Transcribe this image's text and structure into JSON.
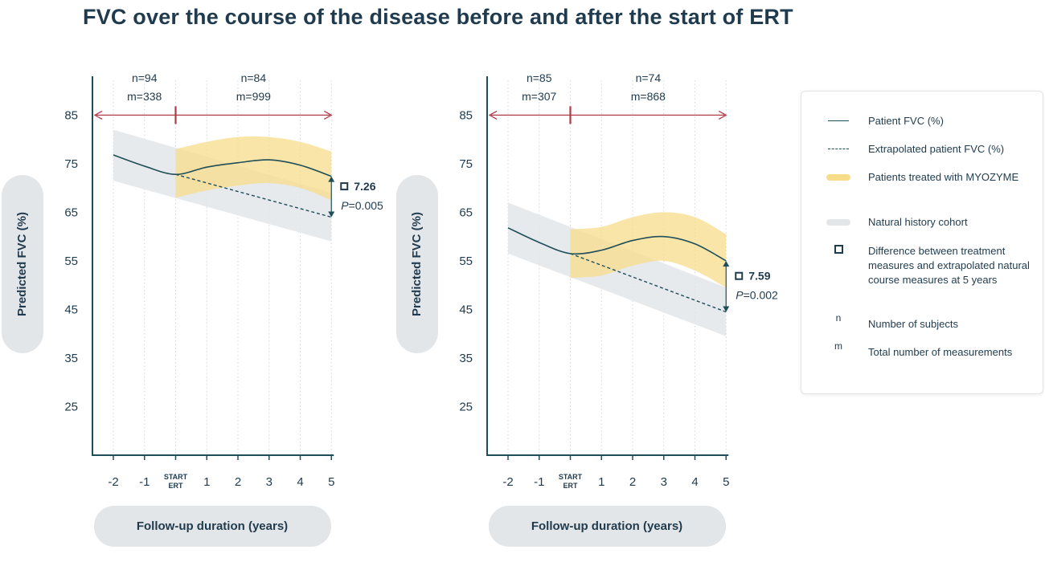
{
  "title": "FVC over the course of the disease before and after the start of ERT",
  "colors": {
    "patient_line": "#1f4e5a",
    "treated_band": "#f7dc8a",
    "natural_band": "#e3e6e9",
    "arrow": "#b03a48",
    "text": "#1f3b4d"
  },
  "legend": {
    "items": [
      {
        "symbol": "solid-line",
        "label": "Patient FVC (%)"
      },
      {
        "symbol": "dashed-line",
        "label": "Extrapolated patient FVC (%)"
      },
      {
        "symbol": "yellow-band",
        "label": "Patients treated with MYOZYME"
      },
      {
        "symbol": "gray-band",
        "label": "Natural history cohort"
      },
      {
        "symbol": "square-icon",
        "label": "Difference between treatment measures and extrapolated natural course measures at 5 years"
      },
      {
        "symbol": "n",
        "label": "Number of subjects"
      },
      {
        "symbol": "m",
        "label": "Total number of measurements"
      }
    ]
  },
  "chart_data": [
    {
      "type": "line",
      "ylabel": "Predicted FVC (%)",
      "xlabel": "Follow-up duration (years)",
      "x_ticks": [
        "-2",
        "-1",
        "START ERT",
        "1",
        "2",
        "3",
        "4",
        "5"
      ],
      "y_ticks": [
        85,
        75,
        65,
        55,
        45,
        35,
        25
      ],
      "ylim": [
        15,
        93
      ],
      "xlim": [
        -2.6,
        5
      ],
      "periods": [
        {
          "n": "n=94",
          "m": "m=338"
        },
        {
          "n": "n=84",
          "m": "m=999"
        }
      ],
      "natural_band": {
        "x": [
          -2,
          5
        ],
        "upper": [
          82,
          69
        ],
        "lower": [
          71.5,
          59
        ]
      },
      "treated_band": {
        "x": [
          0,
          1,
          2,
          3,
          4,
          5
        ],
        "upper": [
          78,
          79.5,
          80.5,
          80.5,
          79.5,
          77.5
        ],
        "lower": [
          68,
          69.5,
          70.5,
          71,
          70,
          67.5
        ]
      },
      "series": [
        {
          "name": "Patient FVC (%)",
          "style": "solid",
          "x": [
            -2,
            -1,
            0,
            1,
            2,
            3,
            4,
            5
          ],
          "y": [
            76.8,
            74.5,
            72.8,
            74.3,
            75.2,
            75.8,
            74.7,
            72.4
          ]
        },
        {
          "name": "Extrapolated patient FVC (%)",
          "style": "dashed",
          "x": [
            0,
            5
          ],
          "y": [
            72.8,
            64
          ]
        }
      ],
      "difference": {
        "value": "7.26",
        "p": "=0.005",
        "p_label": "P"
      }
    },
    {
      "type": "line",
      "ylabel": "Predicted FVC (%)",
      "xlabel": "Follow-up duration (years)",
      "x_ticks": [
        "-2",
        "-1",
        "START ERT",
        "1",
        "2",
        "3",
        "4",
        "5"
      ],
      "y_ticks": [
        85,
        75,
        65,
        55,
        45,
        35,
        25
      ],
      "ylim": [
        15,
        93
      ],
      "xlim": [
        -2.6,
        5
      ],
      "periods": [
        {
          "n": "n=85",
          "m": "m=307"
        },
        {
          "n": "n=74",
          "m": "m=868"
        }
      ],
      "natural_band": {
        "x": [
          -2,
          5
        ],
        "upper": [
          67,
          49.5
        ],
        "lower": [
          56.5,
          39.5
        ]
      },
      "treated_band": {
        "x": [
          0,
          1,
          2,
          3,
          4,
          5
        ],
        "upper": [
          61.5,
          62,
          64,
          65,
          64,
          60.5
        ],
        "lower": [
          51.5,
          52,
          54,
          55,
          53,
          49.5
        ]
      },
      "series": [
        {
          "name": "Patient FVC (%)",
          "style": "solid",
          "x": [
            -2,
            -1,
            0,
            1,
            2,
            3,
            4,
            5
          ],
          "y": [
            61.8,
            58.8,
            56.5,
            57.2,
            59.2,
            60,
            58.5,
            55
          ]
        },
        {
          "name": "Extrapolated patient FVC (%)",
          "style": "dashed",
          "x": [
            0,
            5
          ],
          "y": [
            56.5,
            44.5
          ]
        }
      ],
      "difference": {
        "value": "7.59",
        "p": "=0.002",
        "p_label": "P"
      }
    }
  ]
}
